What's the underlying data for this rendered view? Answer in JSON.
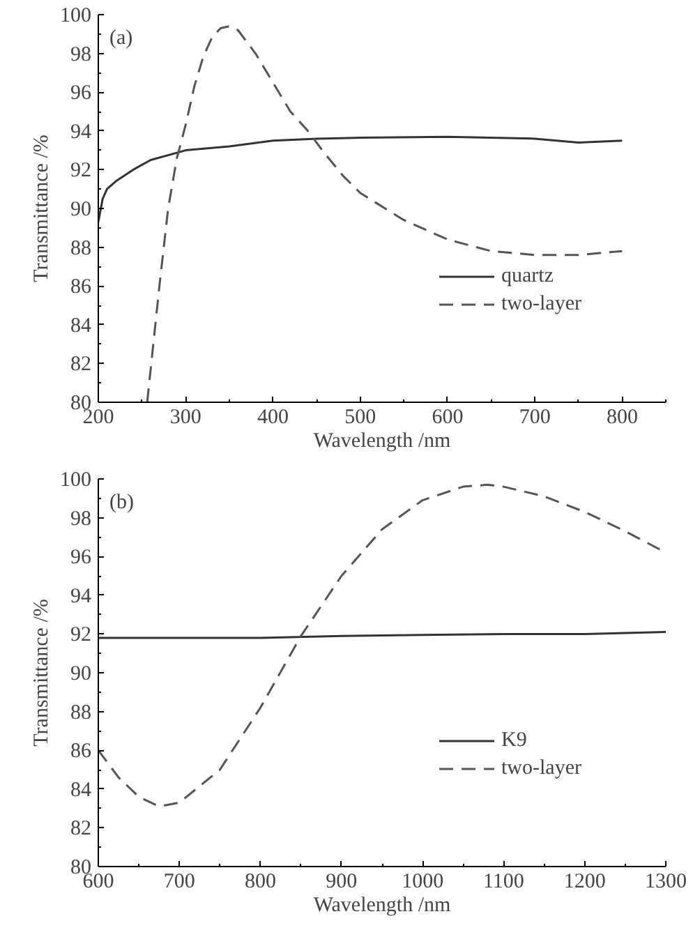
{
  "chart_data": [
    {
      "type": "line",
      "xlabel": "Wavelength /nm",
      "ylabel": "Transmittance /%",
      "annotations": [
        "(a)"
      ],
      "xlim": [
        200,
        850
      ],
      "ylim": [
        80,
        100
      ],
      "xticks": [
        200,
        300,
        400,
        500,
        600,
        700,
        800
      ],
      "yticks": [
        80,
        82,
        84,
        86,
        88,
        90,
        92,
        94,
        96,
        98,
        100
      ],
      "grid": false,
      "legend": "bottom right",
      "series": [
        {
          "name": "quartz",
          "color": "#333333",
          "line_style": "solid",
          "x": [
            200,
            205,
            210,
            220,
            240,
            260,
            300,
            350,
            400,
            450,
            500,
            600,
            700,
            750,
            800
          ],
          "values": [
            89.3,
            90.5,
            91.0,
            91.4,
            92.0,
            92.5,
            93.0,
            93.2,
            93.5,
            93.6,
            93.65,
            93.7,
            93.6,
            93.4,
            93.5
          ]
        },
        {
          "name": "two-layer",
          "color": "#555555",
          "line_style": "dashed",
          "x": [
            256,
            270,
            280,
            290,
            300,
            310,
            320,
            330,
            340,
            350,
            360,
            380,
            400,
            420,
            440,
            460,
            480,
            500,
            550,
            600,
            650,
            700,
            750,
            800
          ],
          "values": [
            80,
            86,
            90,
            92.6,
            94.3,
            96.3,
            97.8,
            98.8,
            99.3,
            99.4,
            99.2,
            98,
            96.5,
            95,
            94,
            92.8,
            91.7,
            90.8,
            89.4,
            88.4,
            87.8,
            87.6,
            87.6,
            87.8
          ]
        }
      ]
    },
    {
      "type": "line",
      "xlabel": "Wavelength /nm",
      "ylabel": "Transmittance /%",
      "annotations": [
        "(b)"
      ],
      "xlim": [
        600,
        1300
      ],
      "ylim": [
        80,
        100
      ],
      "xticks": [
        600,
        700,
        800,
        900,
        1000,
        1100,
        1200,
        1300
      ],
      "yticks": [
        80,
        82,
        84,
        86,
        88,
        90,
        92,
        94,
        96,
        98,
        100
      ],
      "grid": false,
      "legend": "bottom right",
      "series": [
        {
          "name": "K9",
          "color": "#333333",
          "line_style": "solid",
          "x": [
            600,
            700,
            800,
            900,
            1000,
            1100,
            1200,
            1300
          ],
          "values": [
            91.8,
            91.8,
            91.8,
            91.9,
            91.95,
            92.0,
            92.0,
            92.1
          ]
        },
        {
          "name": "two-layer",
          "color": "#555555",
          "line_style": "dashed",
          "x": [
            600,
            625,
            650,
            675,
            700,
            750,
            800,
            850,
            900,
            950,
            1000,
            1050,
            1080,
            1100,
            1150,
            1200,
            1250,
            1300
          ],
          "values": [
            86,
            84.6,
            83.6,
            83.1,
            83.3,
            85,
            88.2,
            91.9,
            95.0,
            97.4,
            98.9,
            99.6,
            99.7,
            99.6,
            99.1,
            98.3,
            97.3,
            96.2
          ]
        }
      ]
    }
  ]
}
